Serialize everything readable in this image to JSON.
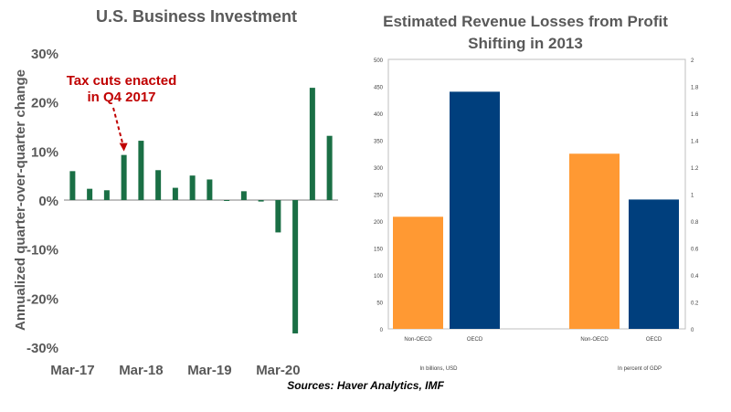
{
  "source": "Sources: Haver Analytics, IMF",
  "chart_data": [
    {
      "type": "bar",
      "title": "U.S. Business Investment",
      "ylabel": "Annualized quarter-over-quarter change",
      "xlabel": "",
      "ylim": [
        -30,
        30
      ],
      "yticks": [
        "30%",
        "20%",
        "10%",
        "0%",
        "-10%",
        "-20%",
        "-30%"
      ],
      "yticks_values": [
        30,
        20,
        10,
        0,
        -10,
        -20,
        -30
      ],
      "xtick_labels": [
        "Mar-17",
        "Mar-18",
        "Mar-19",
        "Mar-20"
      ],
      "xtick_indices": [
        0,
        4,
        8,
        12
      ],
      "categories": [
        "Q1 2017",
        "Q2 2017",
        "Q3 2017",
        "Q4 2017",
        "Q1 2018",
        "Q2 2018",
        "Q3 2018",
        "Q4 2018",
        "Q1 2019",
        "Q2 2019",
        "Q3 2019",
        "Q4 2019",
        "Q1 2020",
        "Q2 2020",
        "Q3 2020",
        "Q4 2020"
      ],
      "values": [
        5.9,
        2.3,
        2.0,
        9.2,
        12.1,
        6.1,
        2.5,
        5.0,
        4.2,
        0.0,
        1.8,
        -0.3,
        -6.6,
        -27.2,
        22.9,
        13.1
      ],
      "color": "#1a6f45",
      "annotation": {
        "lines": [
          "Tax cuts enacted",
          "in Q4 2017"
        ],
        "target_index": 3,
        "color": "#c00000"
      }
    },
    {
      "type": "bar",
      "title": "Estimated Revenue Losses from Profit Shifting in 2013",
      "y_left": {
        "ylim": [
          0,
          500
        ],
        "ticks": [
          "0",
          "50",
          "100",
          "150",
          "200",
          "250",
          "300",
          "350",
          "400",
          "450",
          "500"
        ]
      },
      "y_right": {
        "ylim": [
          0,
          2
        ],
        "ticks": [
          "0",
          "0.2",
          "0.4",
          "0.6",
          "0.8",
          "1",
          "1.2",
          "1.4",
          "1.6",
          "1.8",
          "2"
        ]
      },
      "groups": [
        {
          "label": "In billions, USD",
          "axis": "left",
          "bars": [
            {
              "label": "Non-OECD",
              "value": 208,
              "color": "#ff9933"
            },
            {
              "label": "OECD",
              "value": 440,
              "color": "#003f7d"
            }
          ]
        },
        {
          "label": "In percent of GDP",
          "axis": "right",
          "bars": [
            {
              "label": "Non-OECD",
              "value": 1.3,
              "color": "#ff9933"
            },
            {
              "label": "OECD",
              "value": 0.96,
              "color": "#003f7d"
            }
          ]
        }
      ]
    }
  ]
}
